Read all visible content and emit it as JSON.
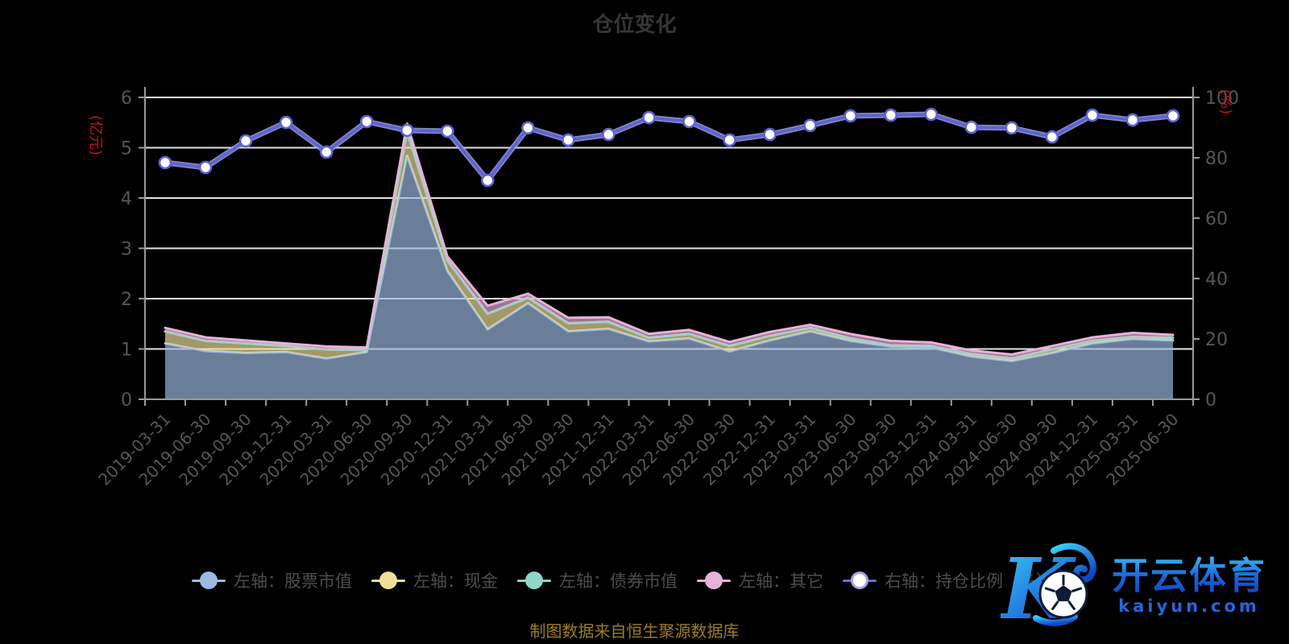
{
  "title": "仓位变化",
  "footer": "制图数据来自恒生聚源数据库",
  "watermark": {
    "brand": "开云体育",
    "domain": "kaiyun.com",
    "logo_letter": "K"
  },
  "colors": {
    "background": "#000000",
    "title": "#363636",
    "grid": "#e2e2e2",
    "axis": "#9a9a9a",
    "tick_text": "#565656",
    "unit_text": "#c41414",
    "legend_text": "#4d4d4d",
    "footer_text": "#9d7d1d",
    "line_halo": "#a0a5f0",
    "watermark_blue_light": "#38b8f2",
    "watermark_blue_dark": "#1148c4"
  },
  "legend": [
    {
      "key": "stock",
      "label": "左轴：股票市值",
      "color": "#9cb9e2",
      "marker": "filled"
    },
    {
      "key": "cash",
      "label": "左轴：现金",
      "color": "#f0e09a",
      "marker": "filled"
    },
    {
      "key": "bond",
      "label": "左轴：债券市值",
      "color": "#90d6c8",
      "marker": "filled"
    },
    {
      "key": "other",
      "label": "左轴：其它",
      "color": "#e6b2d8",
      "marker": "filled"
    },
    {
      "key": "ratio",
      "label": "右轴：持仓比例（%）",
      "color": "#6a6fdb",
      "marker": "hollow"
    }
  ],
  "chart_data": {
    "type": "area",
    "subtype": "stacked-area-with-line",
    "grid": true,
    "legend_position": "bottom",
    "categories": [
      "2019-03-31",
      "2019-06-30",
      "2019-09-30",
      "2019-12-31",
      "2020-03-31",
      "2020-06-30",
      "2020-09-30",
      "2020-12-31",
      "2021-03-31",
      "2021-06-30",
      "2021-09-30",
      "2021-12-31",
      "2022-03-31",
      "2022-06-30",
      "2022-09-30",
      "2022-12-31",
      "2023-03-31",
      "2023-06-30",
      "2023-09-30",
      "2023-12-31",
      "2024-03-31",
      "2024-06-30",
      "2024-09-30",
      "2024-12-31",
      "2025-03-31",
      "2025-06-30"
    ],
    "left_axis": {
      "label": "(亿元)",
      "min": 0,
      "max": 6,
      "ticks": [
        0,
        1,
        2,
        3,
        4,
        5,
        6
      ]
    },
    "right_axis": {
      "label": "(%)",
      "min": 0,
      "max": 100,
      "ticks": [
        0,
        20,
        40,
        60,
        80,
        100
      ]
    },
    "series": [
      {
        "key": "stock",
        "name": "左轴：股票市值",
        "type": "area",
        "axis": "left",
        "stack": true,
        "color": "#9cb9e2",
        "values": [
          1.11,
          0.96,
          0.92,
          0.94,
          0.81,
          0.94,
          4.84,
          2.55,
          1.39,
          1.91,
          1.35,
          1.4,
          1.15,
          1.21,
          0.95,
          1.17,
          1.35,
          1.16,
          1.05,
          1.03,
          0.85,
          0.76,
          0.92,
          1.11,
          1.2,
          1.17
        ]
      },
      {
        "key": "cash",
        "name": "左轴：现金",
        "type": "area",
        "axis": "left",
        "stack": true,
        "color": "#f0e09a",
        "values": [
          0.24,
          0.2,
          0.19,
          0.12,
          0.18,
          0.04,
          0.48,
          0.21,
          0.31,
          0.11,
          0.16,
          0.14,
          0.07,
          0.09,
          0.11,
          0.09,
          0.07,
          0.05,
          0.02,
          0.03,
          0.05,
          0.05,
          0.07,
          0.05,
          0.04,
          0.05
        ]
      },
      {
        "key": "bond",
        "name": "左轴：债券市值",
        "type": "area",
        "axis": "left",
        "stack": true,
        "color": "#90d6c8",
        "values": [
          0,
          0,
          0,
          0,
          0,
          0,
          0,
          0,
          0,
          0,
          0,
          0,
          0,
          0,
          0,
          0,
          0,
          0,
          0,
          0,
          0,
          0,
          0,
          0,
          0,
          0
        ]
      },
      {
        "key": "other",
        "name": "左轴：其它",
        "type": "area",
        "axis": "left",
        "stack": true,
        "color": "#e6b2d8",
        "values": [
          0.07,
          0.07,
          0.06,
          0.05,
          0.06,
          0.05,
          0.16,
          0.08,
          0.16,
          0.08,
          0.11,
          0.09,
          0.08,
          0.08,
          0.08,
          0.08,
          0.06,
          0.09,
          0.09,
          0.07,
          0.07,
          0.08,
          0.07,
          0.07,
          0.08,
          0.06
        ]
      },
      {
        "key": "ratio",
        "name": "右轴：持仓比例（%）",
        "type": "line",
        "axis": "right",
        "color": "#5d63d4",
        "values": [
          78.4,
          76.8,
          85.6,
          91.7,
          81.9,
          92.0,
          89.1,
          88.8,
          72.5,
          89.9,
          85.9,
          87.7,
          93.3,
          92.0,
          85.9,
          87.7,
          90.7,
          93.9,
          94.1,
          94.4,
          90.1,
          89.9,
          86.9,
          94.1,
          92.5,
          93.9
        ]
      }
    ]
  }
}
